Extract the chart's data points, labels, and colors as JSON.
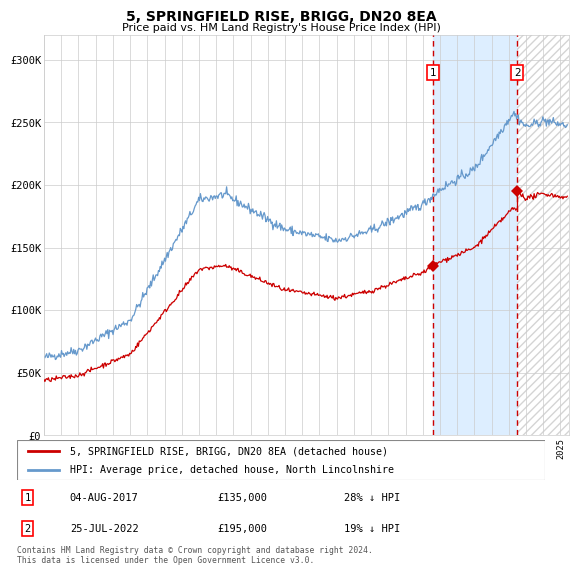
{
  "title": "5, SPRINGFIELD RISE, BRIGG, DN20 8EA",
  "subtitle": "Price paid vs. HM Land Registry's House Price Index (HPI)",
  "hpi_label": "HPI: Average price, detached house, North Lincolnshire",
  "property_label": "5, SPRINGFIELD RISE, BRIGG, DN20 8EA (detached house)",
  "sale1_date": "04-AUG-2017",
  "sale1_price": 135000,
  "sale1_note": "28% ↓ HPI",
  "sale2_date": "25-JUL-2022",
  "sale2_price": 195000,
  "sale2_note": "19% ↓ HPI",
  "footer": "Contains HM Land Registry data © Crown copyright and database right 2024.\nThis data is licensed under the Open Government Licence v3.0.",
  "hpi_color": "#6699cc",
  "property_color": "#cc0000",
  "vline_color": "#cc0000",
  "highlight_bg": "#ddeeff",
  "ylim": [
    0,
    320000
  ],
  "yticks": [
    0,
    50000,
    100000,
    150000,
    200000,
    250000,
    300000
  ],
  "ytick_labels": [
    "£0",
    "£50K",
    "£100K",
    "£150K",
    "£200K",
    "£250K",
    "£300K"
  ],
  "sale1_year": 2017.583,
  "sale2_year": 2022.5,
  "start_year": 1995,
  "end_year": 2025
}
